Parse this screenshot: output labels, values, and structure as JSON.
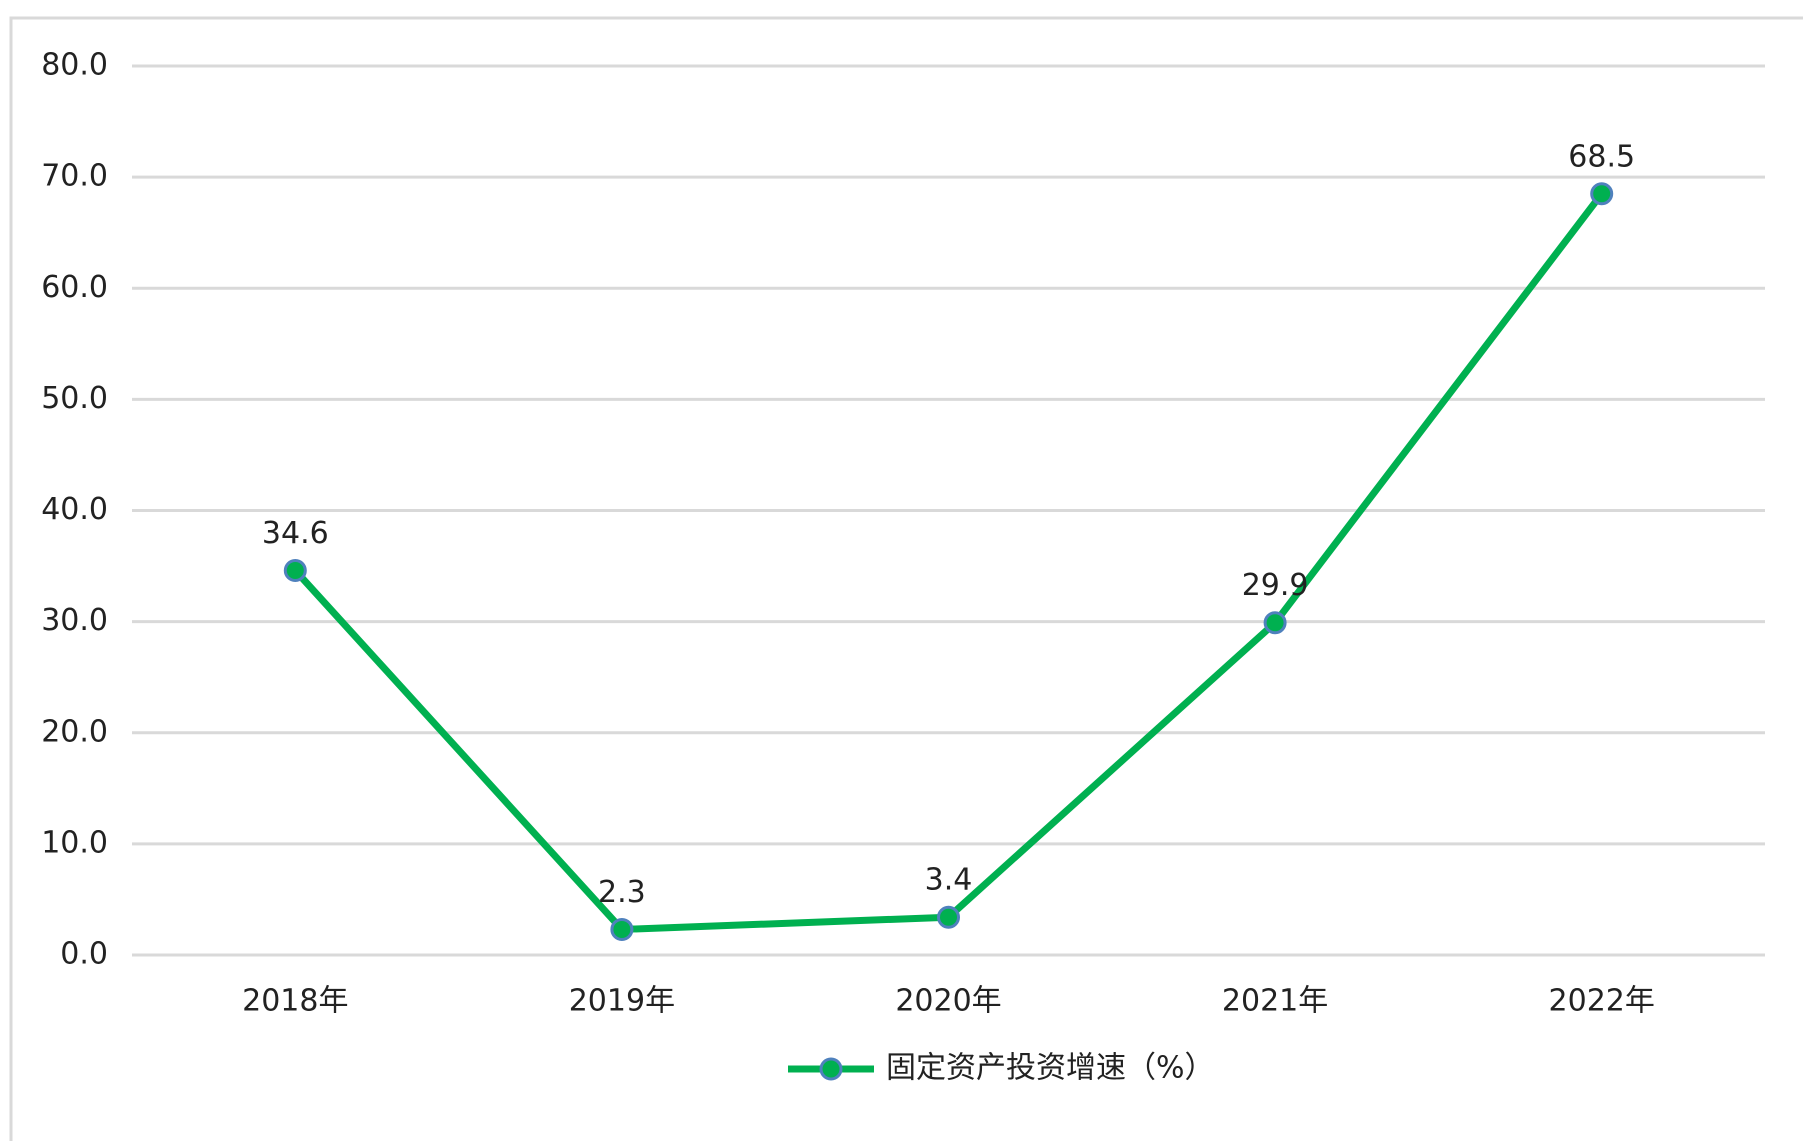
{
  "chart_data": {
    "type": "line",
    "categories": [
      "2018年",
      "2019年",
      "2020年",
      "2021年",
      "2022年"
    ],
    "series": [
      {
        "name": "固定资产投资增速（%）",
        "color": "#00b050",
        "values": [
          34.6,
          2.3,
          3.4,
          29.9,
          68.5
        ]
      }
    ],
    "ylim": [
      0,
      80
    ],
    "yticks": [
      {
        "value": 0,
        "label": "0.0"
      },
      {
        "value": 10,
        "label": "10.0"
      },
      {
        "value": 20,
        "label": "20.0"
      },
      {
        "value": 30,
        "label": "30.0"
      },
      {
        "value": 40,
        "label": "40.0"
      },
      {
        "value": 50,
        "label": "50.0"
      },
      {
        "value": 60,
        "label": "60.0"
      },
      {
        "value": 70,
        "label": "70.0"
      },
      {
        "value": 80,
        "label": "80.0"
      }
    ],
    "grid": true,
    "legend": "bottom"
  }
}
